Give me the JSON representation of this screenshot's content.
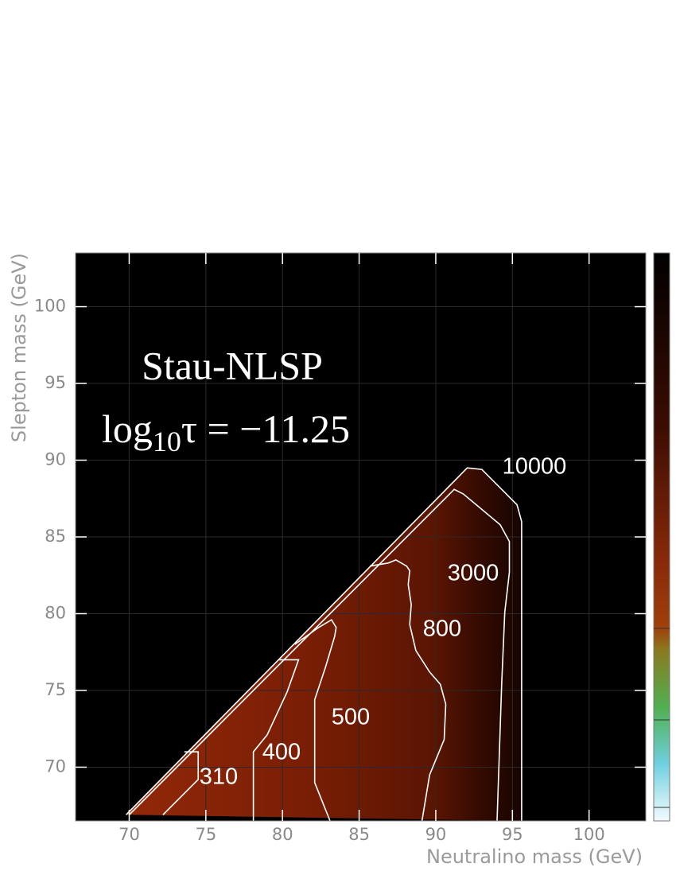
{
  "chart_data": {
    "type": "contour",
    "annotation": "Stau-NLSP",
    "formula": {
      "base": "log",
      "subscript": "10",
      "rest": "τ = −11.25"
    },
    "xlabel": "Neutralino mass (GeV)",
    "ylabel": "Slepton mass (GeV)",
    "xlim": [
      66.5,
      103.7
    ],
    "ylim": [
      66.5,
      103.5
    ],
    "xticks": [
      70,
      75,
      80,
      85,
      90,
      95,
      100
    ],
    "yticks": [
      70,
      75,
      80,
      85,
      90,
      95,
      100
    ],
    "grid": true,
    "contours": [
      {
        "level": 10000,
        "x": [
          69.8,
          92.05,
          93.0,
          95.3,
          95.6,
          95.6
        ],
        "y": [
          66.9,
          89.5,
          89.4,
          87.1,
          86.0,
          66.5
        ]
      },
      {
        "level": 3000,
        "x": [
          70.0,
          91.2,
          91.8,
          94.2,
          94.8,
          94.8,
          94.5,
          94.3,
          94.0
        ],
        "y": [
          66.9,
          88.1,
          87.8,
          85.8,
          84.7,
          82.7,
          80.1,
          75.4,
          66.5
        ]
      },
      {
        "level": 800,
        "x": [
          89.1,
          89.6,
          90.55,
          90.65,
          90.3,
          89.6,
          88.7,
          88.3,
          88.4,
          88.2,
          88.3,
          88.1,
          87.4,
          86.9,
          85.7
        ],
        "y": [
          66.5,
          69.5,
          71.8,
          74.1,
          75.4,
          76.2,
          77.6,
          79.3,
          80.6,
          81.9,
          82.8,
          83.1,
          83.5,
          83.3,
          83.1
        ]
      },
      {
        "level": 500,
        "x": [
          83.1,
          82.1,
          82.1,
          82.8,
          83.4,
          83.5,
          83.2,
          82.35,
          80.8
        ],
        "y": [
          66.5,
          69.0,
          74.4,
          76.5,
          78.5,
          79.1,
          79.6,
          79.1,
          78.0
        ]
      },
      {
        "level": 400,
        "x": [
          78.1,
          78.1,
          79.0,
          80.3,
          81.05,
          79.8
        ],
        "y": [
          66.5,
          71.0,
          72.1,
          74.9,
          77.0,
          77.0
        ]
      },
      {
        "level": 310,
        "x": [
          72.2,
          74.5,
          74.5,
          73.6
        ],
        "y": [
          66.9,
          69.2,
          71.0,
          71.0
        ]
      }
    ]
  }
}
